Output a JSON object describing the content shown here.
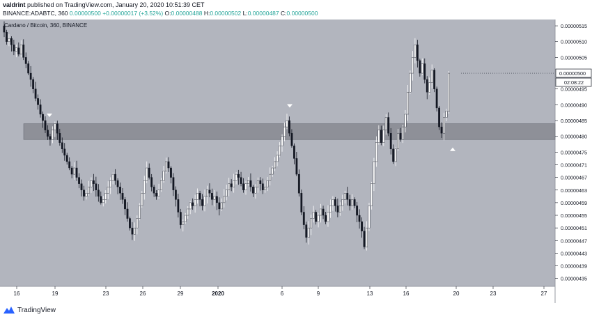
{
  "header": {
    "author": "valdrint",
    "published_text": "published on TradingView.com, January 20, 2020 10:51:39 CET",
    "symbol": "BINANCE:ADABTC, 360",
    "last": "0.00000500",
    "change": "+0.00000017 (+3.52%)",
    "o_label": "O:",
    "o_value": "0.00000488",
    "h_label": "H:",
    "h_value": "0.00000502",
    "l_label": "L:",
    "l_value": "0.00000487",
    "c_label": "C:",
    "c_value": "0.00000500"
  },
  "footer": {
    "brand": "TradingView"
  },
  "colors": {
    "background": "#b2b5be",
    "price_scale_bg": "#ffffff",
    "candle": "#ffffff",
    "zone": "#878a92",
    "value_green": "#26a69a"
  },
  "chart_data": {
    "type": "candlestick",
    "title": "Cardano / Bitcoin, 360, BINANCE",
    "interval": "360",
    "y_range": [
      4.325e-06,
      5.17e-06
    ],
    "x_tick_labels": [
      "16",
      "19",
      "23",
      "26",
      "29",
      "2020",
      "6",
      "9",
      "13",
      "16",
      "20",
      "23",
      "27"
    ],
    "y_tick_labels": [
      "0.00000515",
      "0.00000510",
      "0.00000505",
      "0.00000495",
      "0.00000490",
      "0.00000485",
      "0.00000480",
      "0.00000475",
      "0.00000471",
      "0.00000467",
      "0.00000463",
      "0.00000459",
      "0.00000455",
      "0.00000451",
      "0.00000447",
      "0.00000443",
      "0.00000439",
      "0.00000435"
    ],
    "y_tick_values": [
      5.15e-06,
      5.1e-06,
      5.05e-06,
      4.95e-06,
      4.9e-06,
      4.85e-06,
      4.8e-06,
      4.75e-06,
      4.71e-06,
      4.67e-06,
      4.63e-06,
      4.59e-06,
      4.55e-06,
      4.51e-06,
      4.47e-06,
      4.43e-06,
      4.39e-06,
      4.35e-06
    ],
    "last_price_label": "0.00000500",
    "last_price_value": 5e-06,
    "countdown": "02:08:22",
    "support_zone": [
      4.79e-06,
      4.84e-06
    ],
    "markers": [
      {
        "type": "down-arrow",
        "date": "Dec 18",
        "price": 4.85e-06
      },
      {
        "type": "down-arrow",
        "date": "Jan 6",
        "price": 4.88e-06
      },
      {
        "type": "up-arrow",
        "date": "Jan 19",
        "price": 4.78e-06
      }
    ],
    "candles_close": [
      5.13e-06,
      5.1e-06,
      5.11e-06,
      5.09e-06,
      5.07e-06,
      5.08e-06,
      5.06e-06,
      5.09e-06,
      5.05e-06,
      5.03e-06,
      5e-06,
      4.98e-06,
      4.95e-06,
      4.92e-06,
      4.9e-06,
      4.87e-06,
      4.85e-06,
      4.82e-06,
      4.8e-06,
      4.79e-06,
      4.82e-06,
      4.84e-06,
      4.81e-06,
      4.78e-06,
      4.76e-06,
      4.74e-06,
      4.72e-06,
      4.7e-06,
      4.68e-06,
      4.7e-06,
      4.67e-06,
      4.65e-06,
      4.63e-06,
      4.61e-06,
      4.62e-06,
      4.64e-06,
      4.66e-06,
      4.65e-06,
      4.63e-06,
      4.61e-06,
      4.59e-06,
      4.6e-06,
      4.62e-06,
      4.64e-06,
      4.66e-06,
      4.68e-06,
      4.66e-06,
      4.64e-06,
      4.62e-06,
      4.6e-06,
      4.57e-06,
      4.54e-06,
      4.51e-06,
      4.49e-06,
      4.51e-06,
      4.54e-06,
      4.58e-06,
      4.62e-06,
      4.66e-06,
      4.7e-06,
      4.67e-06,
      4.64e-06,
      4.62e-06,
      4.61e-06,
      4.63e-06,
      4.66e-06,
      4.69e-06,
      4.72e-06,
      4.7e-06,
      4.67e-06,
      4.63e-06,
      4.6e-06,
      4.56e-06,
      4.52e-06,
      4.53e-06,
      4.55e-06,
      4.57e-06,
      4.59e-06,
      4.58e-06,
      4.6e-06,
      4.62e-06,
      4.6e-06,
      4.58e-06,
      4.61e-06,
      4.63e-06,
      4.62e-06,
      4.6e-06,
      4.61e-06,
      4.59e-06,
      4.57e-06,
      4.59e-06,
      4.61e-06,
      4.63e-06,
      4.65e-06,
      4.64e-06,
      4.66e-06,
      4.68e-06,
      4.67e-06,
      4.65e-06,
      4.63e-06,
      4.65e-06,
      4.66e-06,
      4.64e-06,
      4.62e-06,
      4.64e-06,
      4.66e-06,
      4.65e-06,
      4.63e-06,
      4.64e-06,
      4.66e-06,
      4.68e-06,
      4.7e-06,
      4.72e-06,
      4.74e-06,
      4.77e-06,
      4.8e-06,
      4.83e-06,
      4.85e-06,
      4.81e-06,
      4.77e-06,
      4.73e-06,
      4.68e-06,
      4.62e-06,
      4.56e-06,
      4.52e-06,
      4.48e-06,
      4.51e-06,
      4.54e-06,
      4.56e-06,
      4.53e-06,
      4.55e-06,
      4.57e-06,
      4.55e-06,
      4.53e-06,
      4.56e-06,
      4.58e-06,
      4.6e-06,
      4.58e-06,
      4.56e-06,
      4.58e-06,
      4.6e-06,
      4.62e-06,
      4.6e-06,
      4.58e-06,
      4.6e-06,
      4.58e-06,
      4.55e-06,
      4.53e-06,
      4.5e-06,
      4.45e-06,
      4.51e-06,
      4.58e-06,
      4.65e-06,
      4.72e-06,
      4.78e-06,
      4.82e-06,
      4.78e-06,
      4.82e-06,
      4.86e-06,
      4.81e-06,
      4.76e-06,
      4.72e-06,
      4.76e-06,
      4.81e-06,
      4.79e-06,
      4.83e-06,
      4.87e-06,
      4.94e-06,
      5e-06,
      5.05e-06,
      5.09e-06,
      5.04e-06,
      5e-06,
      5.03e-06,
      4.98e-06,
      4.94e-06,
      4.97e-06,
      5.01e-06,
      4.95e-06,
      4.89e-06,
      4.83e-06,
      4.81e-06,
      4.86e-06,
      4.88e-06,
      5e-06
    ]
  }
}
